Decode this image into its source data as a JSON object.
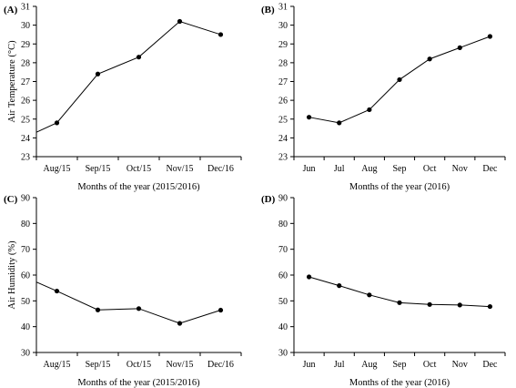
{
  "chart_data": [
    {
      "type": "line",
      "panel_label": "(A)",
      "categories": [
        "Aug/15",
        "Sep/15",
        "Oct/15",
        "Nov/15",
        "Dec/16"
      ],
      "values": [
        24.8,
        27.4,
        28.3,
        30.2,
        29.5
      ],
      "line_start_value": 24.3,
      "xlabel": "Months of the year (2015/2016)",
      "ylabel": "Air Temperature (°C)",
      "ylim": [
        23,
        31
      ],
      "yticks": [
        "23",
        "24",
        "25",
        "26",
        "27",
        "28",
        "29",
        "30",
        "31"
      ],
      "grid": false
    },
    {
      "type": "line",
      "panel_label": "(B)",
      "categories": [
        "Jun",
        "Jul",
        "Aug",
        "Sep",
        "Oct",
        "Nov",
        "Dec"
      ],
      "values": [
        25.1,
        24.8,
        25.5,
        27.1,
        28.2,
        28.8,
        29.4
      ],
      "xlabel": "Months of the year (2016)",
      "ylabel": "",
      "ylim": [
        23,
        31
      ],
      "yticks": [
        "23",
        "24",
        "25",
        "26",
        "27",
        "28",
        "29",
        "30",
        "31"
      ],
      "grid": false
    },
    {
      "type": "line",
      "panel_label": "(C)",
      "categories": [
        "Aug/15",
        "Sep/15",
        "Oct/15",
        "Nov/15",
        "Dec/16"
      ],
      "values": [
        53.8,
        46.5,
        47.0,
        41.3,
        46.4
      ],
      "line_start_value": 57.3,
      "xlabel": "Months of the year (2015/2016)",
      "ylabel": "Air Humidity (%)",
      "ylim": [
        30,
        90
      ],
      "yticks": [
        "30",
        "40",
        "50",
        "60",
        "70",
        "80",
        "90"
      ],
      "grid": false
    },
    {
      "type": "line",
      "panel_label": "(D)",
      "categories": [
        "Jun",
        "Jul",
        "Aug",
        "Sep",
        "Oct",
        "Nov",
        "Dec"
      ],
      "values": [
        59.3,
        55.9,
        52.3,
        49.3,
        48.6,
        48.4,
        47.8
      ],
      "xlabel": "Months of the year (2016)",
      "ylabel": "",
      "ylim": [
        30,
        90
      ],
      "yticks": [
        "30",
        "40",
        "50",
        "60",
        "70",
        "80",
        "90"
      ],
      "grid": false
    }
  ]
}
